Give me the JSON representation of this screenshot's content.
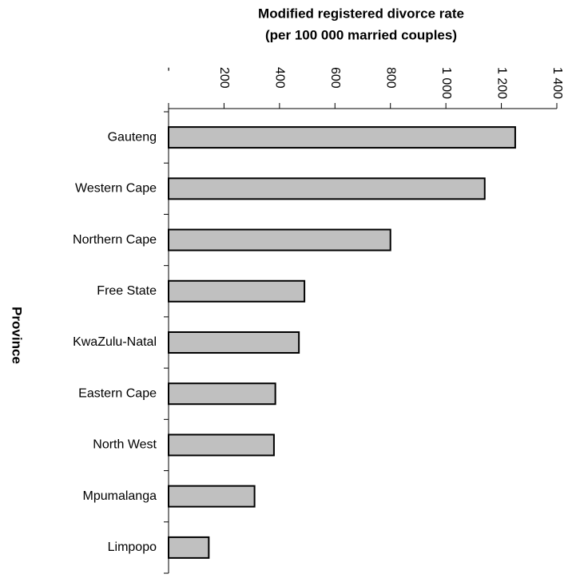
{
  "chart_data": {
    "type": "bar",
    "orientation": "horizontal",
    "xlabel": [
      "Modified registered divorce rate",
      "(per 100 000 married couples)"
    ],
    "ylabel": "Province",
    "categories": [
      "Gauteng",
      "Western Cape",
      "Northern Cape",
      "Free State",
      "KwaZulu-Natal",
      "Eastern Cape",
      "North West",
      "Mpumalanga",
      "Limpopo"
    ],
    "values": [
      1250,
      1140,
      800,
      490,
      470,
      385,
      380,
      310,
      145
    ],
    "color": "#c0c0c0",
    "xlim": [
      0,
      1400
    ],
    "xticks": [
      {
        "value": 0,
        "label": "-"
      },
      200,
      400,
      600,
      800,
      {
        "value": 1000,
        "label": "1 000"
      },
      {
        "value": 1200,
        "label": "1 200"
      },
      {
        "value": 1400,
        "label": "1 400"
      }
    ]
  }
}
